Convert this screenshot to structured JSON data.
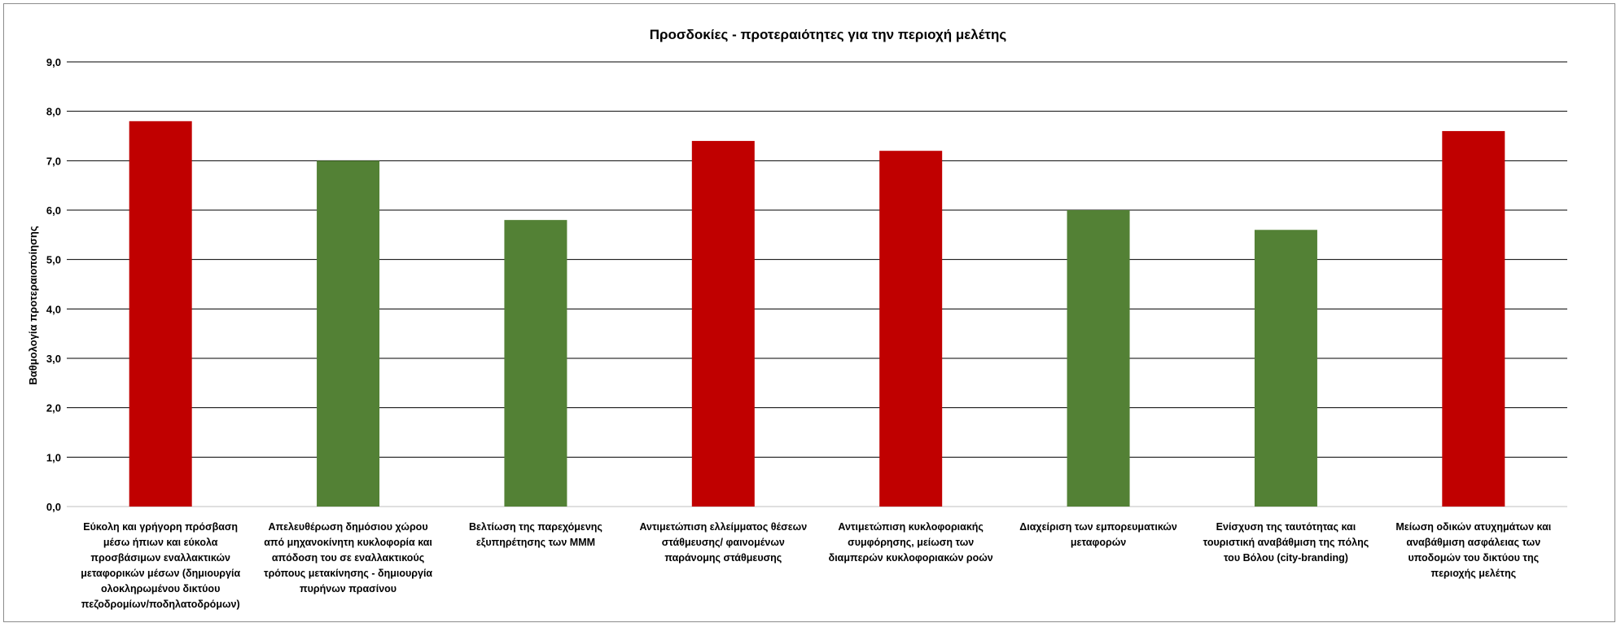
{
  "chart_data": {
    "type": "bar",
    "title": "Προσδοκίες - προτεραιότητες για την περιοχή μελέτης",
    "ylabel": "Βαθμολογία προτεραιοποίησης",
    "xlabel": "",
    "ylim": [
      0,
      9
    ],
    "yticks": [
      "0,0",
      "1,0",
      "2,0",
      "3,0",
      "4,0",
      "5,0",
      "6,0",
      "7,0",
      "8,0",
      "9,0"
    ],
    "grid": true,
    "legend": "none",
    "categories": [
      [
        "Εύκολη και γρήγορη πρόσβαση",
        "μέσω ήπιων και εύκολα",
        "προσβάσιμων εναλλακτικών",
        "μεταφορικών μέσων (δημιουργία",
        "ολοκληρωμένου δικτύου",
        "πεζοδρομίων/ποδηλατοδρόμων)"
      ],
      [
        "Απελευθέρωση δημόσιου χώρου",
        "από μηχανοκίνητη κυκλοφορία και",
        "απόδοση του σε εναλλακτικούς",
        "τρόπους μετακίνησης - δημιουργία",
        "πυρήνων πρασίνου"
      ],
      [
        "Βελτίωση της παρεχόμενης",
        "εξυπηρέτησης των ΜΜΜ"
      ],
      [
        "Αντιμετώπιση ελλείμματος θέσεων",
        "στάθμευσης/ φαινομένων",
        "παράνομης στάθμευσης"
      ],
      [
        "Αντιμετώπιση κυκλοφοριακής",
        "συμφόρησης, μείωση των",
        "διαμπερών κυκλοφοριακών ροών"
      ],
      [
        "Διαχείριση των εμπορευματικών",
        "μεταφορών"
      ],
      [
        "Ενίσχυση της ταυτότητας και",
        "τουριστική αναβάθμιση της πόλης",
        "του Βόλου (city-branding)"
      ],
      [
        "Μείωση οδικών ατυχημάτων και",
        "αναβάθμιση ασφάλειας των",
        "υποδομών του δικτύου της",
        "περιοχής μελέτης"
      ]
    ],
    "values": [
      7.8,
      7.0,
      5.8,
      7.4,
      7.2,
      6.0,
      5.6,
      7.6
    ],
    "bar_colors": [
      "#c00000",
      "#538135",
      "#538135",
      "#c00000",
      "#c00000",
      "#538135",
      "#538135",
      "#c00000"
    ],
    "colors": {
      "red": "#c00000",
      "green": "#538135",
      "grid": "#000000"
    }
  }
}
